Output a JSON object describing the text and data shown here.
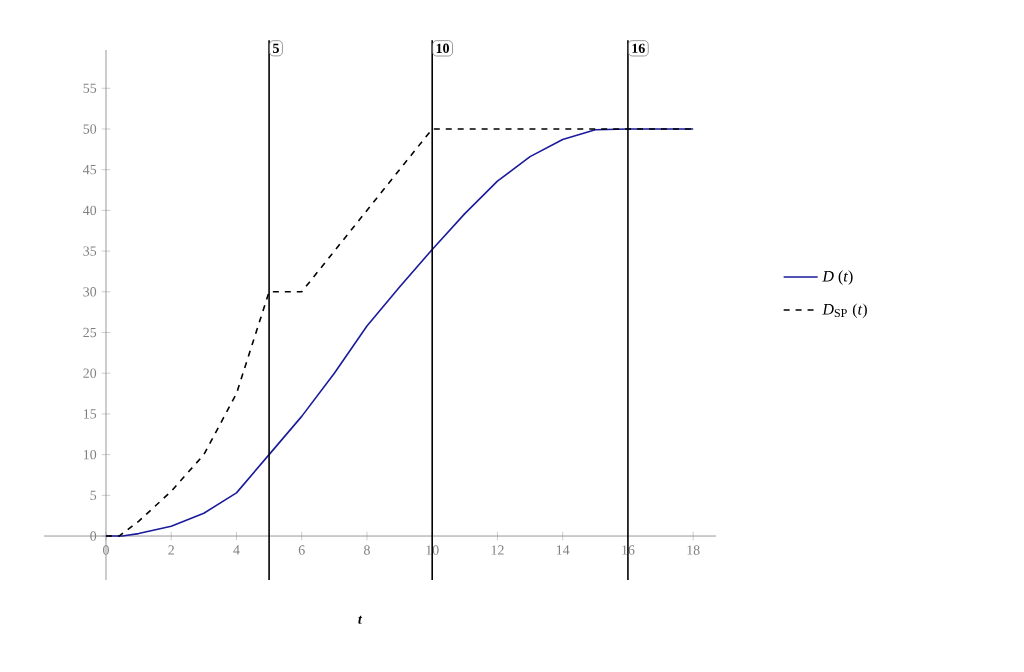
{
  "chart_data": {
    "type": "line",
    "xlabel": "t",
    "xlim": [
      -1.9,
      18.7
    ],
    "ylim": [
      -5.4,
      59.7
    ],
    "xticks": [
      0,
      2,
      4,
      6,
      8,
      10,
      12,
      14,
      16,
      18
    ],
    "yticks": [
      0,
      5,
      10,
      15,
      20,
      25,
      30,
      35,
      40,
      45,
      50,
      55
    ],
    "legend": "right",
    "grid": false,
    "marker": "none",
    "series": [
      {
        "name": "*D* (*t*)",
        "color": "#1a1a9c",
        "line_style": "solid",
        "x": [
          0,
          0.5,
          1,
          2,
          3,
          4,
          5,
          6,
          7,
          8,
          9,
          10,
          11,
          12,
          13,
          14,
          15,
          16,
          17,
          18
        ],
        "values": [
          0,
          0,
          0.3,
          1.2,
          2.8,
          5.3,
          10,
          14.7,
          20,
          25.8,
          30.6,
          35.2,
          39.6,
          43.6,
          46.6,
          48.7,
          49.9,
          50,
          50,
          50
        ]
      },
      {
        "name": "*D*$_{SP}$ (*t*)",
        "color": "#000000",
        "line_style": "dashed",
        "x": [
          0,
          0.4,
          1,
          2,
          3,
          4,
          5,
          6,
          10,
          18
        ],
        "values": [
          0,
          0,
          1.8,
          5.5,
          10,
          17.5,
          30,
          30,
          50,
          50
        ]
      }
    ],
    "ref_lines": [
      {
        "axis": "x",
        "value": 5,
        "label": "5",
        "color": "#000000"
      },
      {
        "axis": "x",
        "value": 10,
        "label": "10",
        "color": "#000000"
      },
      {
        "axis": "x",
        "value": 16,
        "label": "16",
        "color": "#000000"
      }
    ]
  }
}
